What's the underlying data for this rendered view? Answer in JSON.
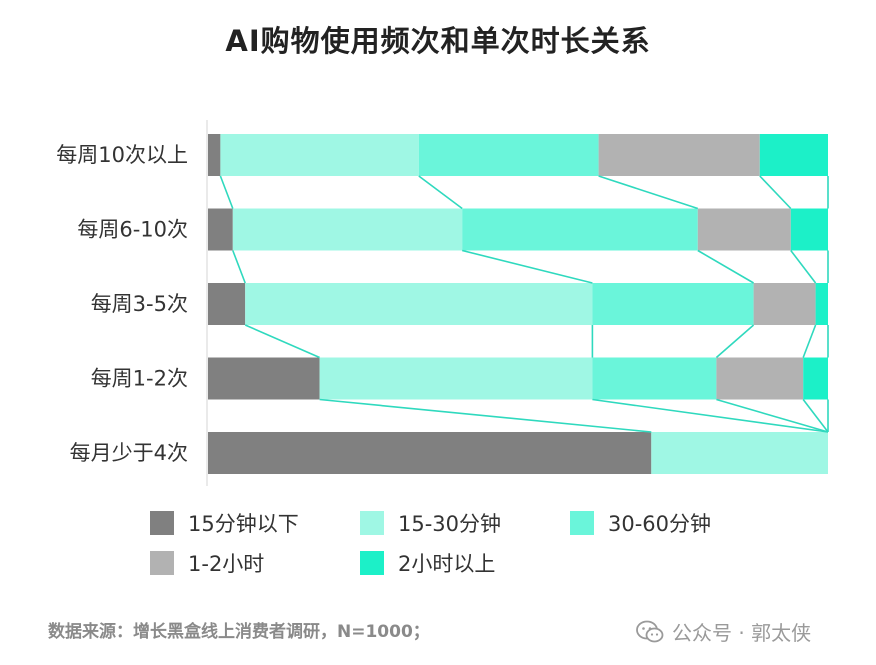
{
  "chart_data": {
    "type": "bar",
    "orientation": "horizontal",
    "stacked": "percent",
    "title": "AI购物使用频次和单次时长关系",
    "categories": [
      "每周10次以上",
      "每周6-10次",
      "每周3-5次",
      "每周1-2次",
      "每月少于4次"
    ],
    "series": [
      {
        "name": "15分钟以下",
        "color": "#808080",
        "values": [
          2,
          4,
          6,
          18,
          71.5
        ]
      },
      {
        "name": "15-30分钟",
        "color": "#9ff7e4",
        "values": [
          32,
          37,
          56,
          44,
          28.5
        ]
      },
      {
        "name": "30-60分钟",
        "color": "#6af5da",
        "values": [
          29,
          38,
          26,
          20,
          0
        ]
      },
      {
        "name": "1-2小时",
        "color": "#b2b2b2",
        "values": [
          26,
          15,
          10,
          14,
          0
        ]
      },
      {
        "name": "2小时以上",
        "color": "#1cf0c8",
        "values": [
          11,
          6,
          2,
          4,
          0
        ]
      }
    ],
    "xlim": [
      0,
      100
    ],
    "connector_color": "#2fd9be",
    "legend_position": "bottom"
  },
  "source": "数据来源：增长黑盒线上消费者调研，N=1000；",
  "watermark": "公众号 · 郭太侠"
}
